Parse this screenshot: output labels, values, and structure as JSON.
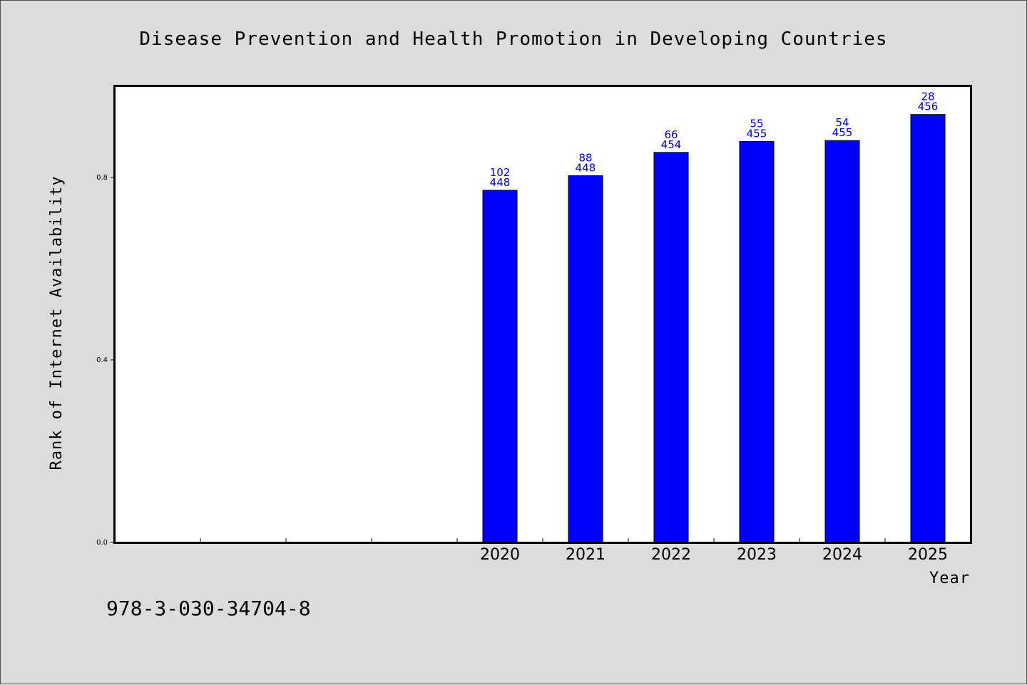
{
  "chart_data": {
    "type": "bar",
    "title": "Disease Prevention and Health Promotion in Developing Countries",
    "xlabel": "Year",
    "ylabel": "Rank of Internet Availability",
    "ylim": [
      0,
      1.0
    ],
    "yticks": [
      "0.0",
      "0.4",
      "0.8"
    ],
    "x_slots": 10,
    "grid": false,
    "bar_color": "#0000ff",
    "label_color": "#0000cc",
    "categories": [
      "2020",
      "2021",
      "2022",
      "2023",
      "2024",
      "2025"
    ],
    "values": [
      0.772,
      0.804,
      0.855,
      0.879,
      0.881,
      0.938
    ],
    "rank_labels": [
      "102",
      "88",
      "66",
      "55",
      "54",
      "28"
    ],
    "total_labels": [
      "448",
      "448",
      "454",
      "455",
      "455",
      "456"
    ]
  },
  "isbn": "978-3-030-34704-8"
}
